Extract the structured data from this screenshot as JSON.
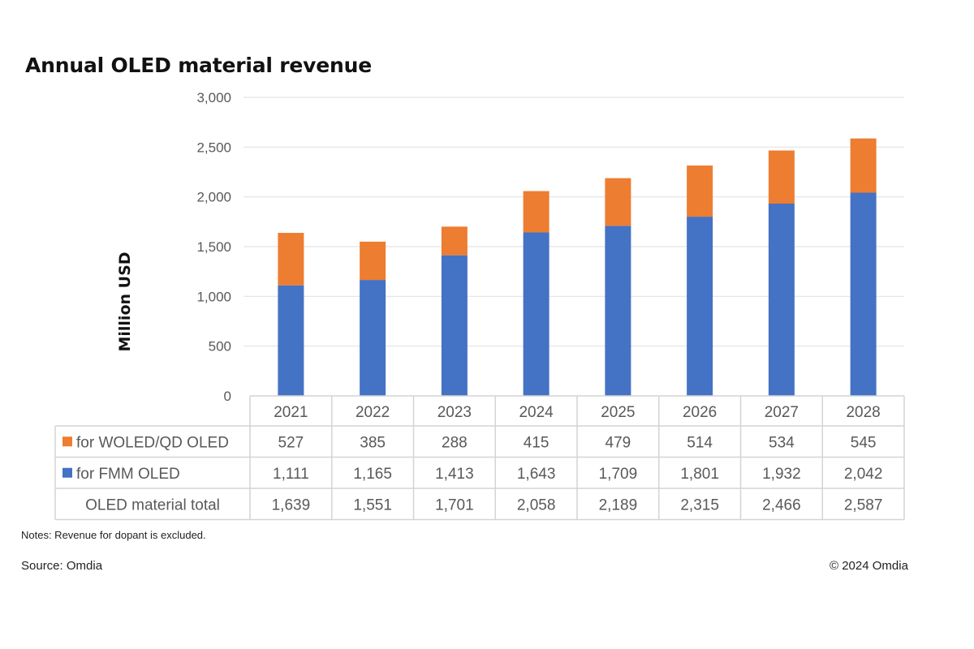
{
  "chart_data": {
    "type": "bar",
    "stacked": true,
    "title": "Annual OLED material revenue",
    "xlabel": "",
    "ylabel": "Million  USD",
    "ylim": [
      0,
      3000
    ],
    "yticks": [
      0,
      500,
      1000,
      1500,
      2000,
      2500,
      3000
    ],
    "ytick_labels": [
      "0",
      "500",
      "1,000",
      "1,500",
      "2,000",
      "2,500",
      "3,000"
    ],
    "grid": true,
    "categories": [
      "2021",
      "2022",
      "2023",
      "2024",
      "2025",
      "2026",
      "2027",
      "2028"
    ],
    "series": [
      {
        "name": "for FMM OLED",
        "color": "#4472c4",
        "values": [
          1111,
          1165,
          1413,
          1643,
          1709,
          1801,
          1932,
          2042
        ],
        "display": [
          "1,111",
          "1,165",
          "1,413",
          "1,643",
          "1,709",
          "1,801",
          "1,932",
          "2,042"
        ]
      },
      {
        "name": "for WOLED/QD OLED",
        "color": "#ed7d31",
        "values": [
          527,
          385,
          288,
          415,
          479,
          514,
          534,
          545
        ],
        "display": [
          "527",
          "385",
          "288",
          "415",
          "479",
          "514",
          "534",
          "545"
        ]
      }
    ],
    "data_table": {
      "rows": [
        {
          "label": "for WOLED/QD OLED",
          "series_index": 1,
          "legend_key": true
        },
        {
          "label": "for FMM OLED",
          "series_index": 0,
          "legend_key": true
        },
        {
          "label": "OLED material total",
          "legend_key": false,
          "values": [
            1639,
            1551,
            1701,
            2058,
            2189,
            2315,
            2466,
            2587
          ],
          "display": [
            "1,639",
            "1,551",
            "1,701",
            "2,058",
            "2,189",
            "2,315",
            "2,466",
            "2,587"
          ]
        }
      ]
    },
    "legend_placement": "data-table-left"
  },
  "footer": {
    "notes": "Notes: Revenue for dopant is excluded.",
    "source": "Source: Omdia",
    "copyright": "© 2024 Omdia"
  }
}
